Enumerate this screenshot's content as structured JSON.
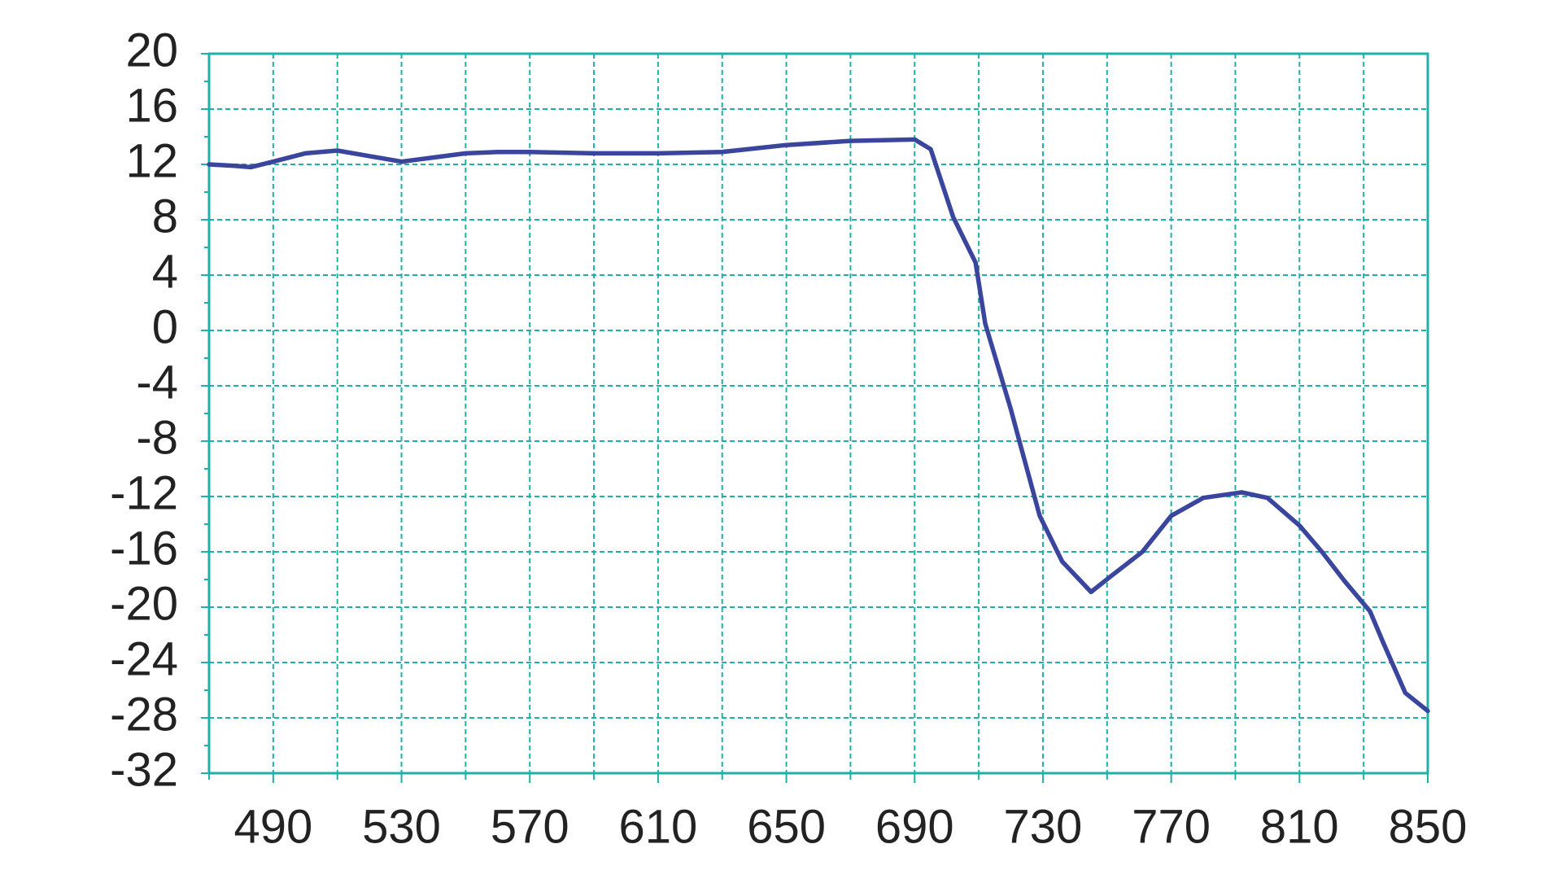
{
  "chart_data": {
    "type": "line",
    "x": [
      470,
      478,
      483,
      490,
      500,
      510,
      520,
      530,
      540,
      550,
      560,
      570,
      590,
      610,
      630,
      650,
      670,
      690,
      695,
      702,
      709,
      712,
      720,
      723,
      729,
      736,
      745,
      751,
      761,
      770,
      780,
      792,
      800,
      810,
      817,
      824,
      832,
      836,
      843,
      850
    ],
    "values": [
      12.0,
      11.9,
      11.8,
      12.2,
      12.8,
      13.0,
      12.6,
      12.2,
      12.5,
      12.8,
      12.9,
      12.9,
      12.8,
      12.8,
      12.9,
      13.4,
      13.7,
      13.8,
      13.1,
      8.2,
      4.9,
      0.5,
      -5.7,
      -8.3,
      -13.4,
      -16.7,
      -18.9,
      -17.8,
      -16.0,
      -13.4,
      -12.1,
      -11.7,
      -12.1,
      -14.1,
      -16.0,
      -18.1,
      -20.3,
      -22.5,
      -26.2,
      -27.5
    ],
    "color": "#3a459e",
    "xlim": [
      470,
      850
    ],
    "ylim": [
      -32,
      20
    ],
    "xticks": [
      490,
      530,
      570,
      610,
      650,
      690,
      730,
      770,
      810,
      850
    ],
    "x_minor_ticks": [
      470,
      510,
      550,
      590,
      630,
      670,
      710,
      750,
      790,
      830
    ],
    "yticks": [
      -32,
      -28,
      -24,
      -20,
      -16,
      -12,
      -8,
      -4,
      0,
      4,
      8,
      12,
      16,
      20
    ],
    "y_minor_ticks": [
      -30,
      -26,
      -22,
      -18,
      -14,
      -10,
      -6,
      -2,
      2,
      6,
      10,
      14,
      18
    ],
    "grid": true,
    "grid_color": "#1fb0a8"
  }
}
